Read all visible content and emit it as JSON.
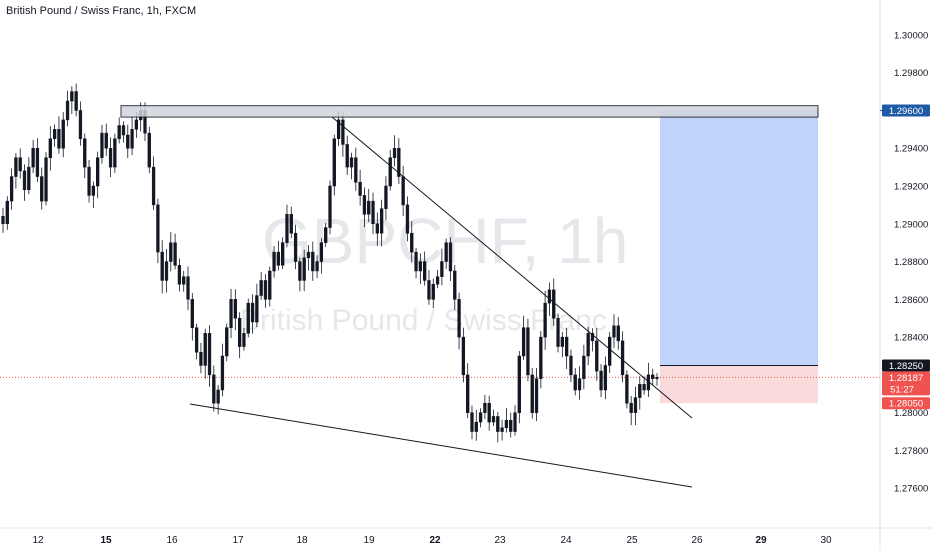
{
  "header": {
    "title": "British Pound / Swiss Franc, 1h, FXCM"
  },
  "watermark": {
    "symbol": "GBPCHF, 1h",
    "name": "British Pound / Swiss Franc"
  },
  "colors": {
    "up": "#26a69a",
    "down": "#ef5350",
    "candle": "#131722",
    "target_zone": "#b9cffb",
    "stop_zone": "#fbd6d8",
    "resistance_fill": "#d1d4dc",
    "line": "#131722",
    "badge_blue": "#1f5aa6",
    "badge_dark": "#131722",
    "badge_red": "#ef5350"
  },
  "chart_data": {
    "type": "candlestick",
    "symbol": "GBPCHF",
    "timeframe": "1h",
    "y_axis": {
      "min": 1.274,
      "max": 1.301,
      "ticks": [
        "1.30000",
        "1.29800",
        "1.29600",
        "1.29400",
        "1.29200",
        "1.29000",
        "1.28800",
        "1.28600",
        "1.28400",
        "1.28200",
        "1.28000",
        "1.27800",
        "1.27600"
      ]
    },
    "x_axis": {
      "labels": [
        {
          "text": "12",
          "bold": false
        },
        {
          "text": "15",
          "bold": true
        },
        {
          "text": "16",
          "bold": false
        },
        {
          "text": "17",
          "bold": false
        },
        {
          "text": "18",
          "bold": false
        },
        {
          "text": "19",
          "bold": false
        },
        {
          "text": "22",
          "bold": true
        },
        {
          "text": "23",
          "bold": false
        },
        {
          "text": "24",
          "bold": false
        },
        {
          "text": "25",
          "bold": false
        },
        {
          "text": "26",
          "bold": false
        },
        {
          "text": "29",
          "bold": true
        },
        {
          "text": "30",
          "bold": false
        }
      ]
    },
    "price_badges": [
      {
        "label": "1.29600",
        "price": 1.296,
        "style": "blue"
      },
      {
        "label": "1.28250",
        "price": 1.2825,
        "style": "dark"
      },
      {
        "label": "1.28187",
        "price": 1.28187,
        "style": "red",
        "sub": "51:27"
      },
      {
        "label": "1.28050",
        "price": 1.2805,
        "style": "red"
      }
    ],
    "position": {
      "side": "long",
      "entry": 1.2825,
      "target": 1.296,
      "stop": 1.2805
    },
    "resistance_zone": {
      "top": 1.2962,
      "bottom": 1.2957
    },
    "current_price": 1.28187,
    "closes": [
      1.29,
      1.2912,
      1.2925,
      1.2935,
      1.2928,
      1.2918,
      1.293,
      1.294,
      1.2925,
      1.2912,
      1.2935,
      1.2945,
      1.295,
      1.294,
      1.2955,
      1.2965,
      1.297,
      1.296,
      1.2945,
      1.293,
      1.2915,
      1.292,
      1.2935,
      1.2948,
      1.294,
      1.293,
      1.2945,
      1.2952,
      1.2947,
      1.294,
      1.295,
      1.2955,
      1.296,
      1.2948,
      1.293,
      1.291,
      1.2885,
      1.287,
      1.288,
      1.289,
      1.2878,
      1.2868,
      1.2872,
      1.286,
      1.2845,
      1.2832,
      1.2825,
      1.2842,
      1.282,
      1.2805,
      1.2812,
      1.283,
      1.2845,
      1.286,
      1.285,
      1.2835,
      1.2842,
      1.2858,
      1.2848,
      1.2862,
      1.287,
      1.286,
      1.2875,
      1.2885,
      1.2878,
      1.289,
      1.2905,
      1.2895,
      1.288,
      1.287,
      1.2882,
      1.2885,
      1.2875,
      1.288,
      1.289,
      1.2898,
      1.292,
      1.2945,
      1.2955,
      1.2942,
      1.293,
      1.2935,
      1.2922,
      1.2915,
      1.2905,
      1.2912,
      1.29,
      1.2895,
      1.2908,
      1.292,
      1.2935,
      1.294,
      1.2925,
      1.291,
      1.2895,
      1.2885,
      1.2875,
      1.288,
      1.287,
      1.286,
      1.2868,
      1.2872,
      1.288,
      1.289,
      1.2875,
      1.286,
      1.284,
      1.282,
      1.28,
      1.279,
      1.2795,
      1.28,
      1.2805,
      1.2795,
      1.2798,
      1.279,
      1.2792,
      1.2796,
      1.279,
      1.28,
      1.283,
      1.2845,
      1.282,
      1.28,
      1.2818,
      1.284,
      1.2858,
      1.2865,
      1.285,
      1.2835,
      1.284,
      1.283,
      1.282,
      1.2812,
      1.2818,
      1.283,
      1.2842,
      1.2838,
      1.2822,
      1.2812,
      1.2825,
      1.284,
      1.2846,
      1.2838,
      1.282,
      1.2805,
      1.28,
      1.2808,
      1.2815,
      1.2812,
      1.282,
      1.2818,
      1.28187
    ]
  }
}
